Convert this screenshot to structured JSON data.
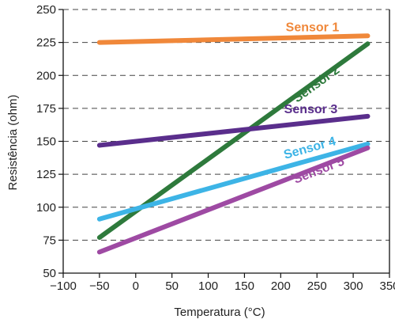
{
  "chart_data": {
    "type": "line",
    "xlabel": "Temperatura (°C)",
    "ylabel": "Resistência (ohm)",
    "xlim": [
      -100,
      350
    ],
    "ylim": [
      50,
      250
    ],
    "xticks": [
      -100,
      -50,
      0,
      50,
      100,
      150,
      200,
      250,
      300,
      350
    ],
    "yticks": [
      50,
      75,
      100,
      125,
      150,
      175,
      200,
      225,
      250
    ],
    "xtick_labels": [
      "−100",
      "−50",
      "0",
      "50",
      "100",
      "150",
      "200",
      "250",
      "300",
      "350"
    ],
    "ytick_labels": [
      "50",
      "75",
      "100",
      "125",
      "150",
      "175",
      "200",
      "225",
      "250"
    ],
    "grid": "horizontal dashed",
    "series": [
      {
        "name": "Sensor 1",
        "color": "#F0883A",
        "x": [
          -50,
          320
        ],
        "y": [
          225,
          230
        ]
      },
      {
        "name": "Sensor 2",
        "color": "#2E7A3C",
        "x": [
          -50,
          320
        ],
        "y": [
          77,
          224
        ]
      },
      {
        "name": "Sensor 3",
        "color": "#5A2E8C",
        "x": [
          -50,
          320
        ],
        "y": [
          147,
          169
        ]
      },
      {
        "name": "Sensor 4",
        "color": "#3DB4E6",
        "x": [
          -50,
          320
        ],
        "y": [
          91,
          148
        ]
      },
      {
        "name": "Sensor 5",
        "color": "#9E4AA3",
        "x": [
          -50,
          320
        ],
        "y": [
          66,
          145
        ]
      }
    ]
  }
}
